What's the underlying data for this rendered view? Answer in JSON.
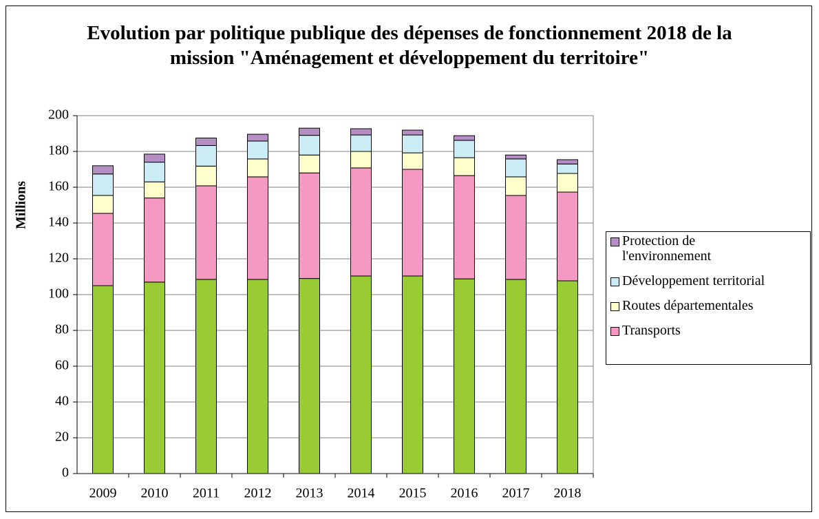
{
  "chart_data": {
    "type": "bar",
    "stacked": true,
    "title": "Evolution par politique publique des dépenses de fonctionnement 2018 de la mission \"Aménagement et développement du territoire\"",
    "y_label": "Millions",
    "categories": [
      "2009",
      "2010",
      "2011",
      "2012",
      "2013",
      "2014",
      "2015",
      "2016",
      "2017",
      "2018"
    ],
    "series": [
      {
        "color": "#99cc33",
        "values": [
          105,
          107,
          108.5,
          108.5,
          109,
          110.4,
          110.4,
          108.8,
          108.5,
          107.7
        ]
      },
      {
        "name": "Transports",
        "color": "#f49ac2",
        "values": [
          40.4,
          47,
          52.3,
          57.3,
          59,
          60.4,
          59.6,
          57.7,
          46.9,
          49.6
        ]
      },
      {
        "name": "Routes départementales",
        "color": "#ffffcc",
        "values": [
          10,
          9,
          11,
          10,
          10,
          9.2,
          9.2,
          10,
          10.4,
          10.4
        ]
      },
      {
        "name": "Développement territorial",
        "color": "#ccecf5",
        "values": [
          12,
          11,
          11.5,
          10,
          11,
          9.2,
          10,
          9.7,
          10,
          5.3
        ]
      },
      {
        "name": "Protection de l'environnement",
        "color": "#b58fc4",
        "values": [
          4.6,
          4.5,
          4.2,
          3.8,
          4,
          3.5,
          2.7,
          2.6,
          2.2,
          2.4
        ]
      }
    ],
    "ylim": [
      0,
      200
    ],
    "yticks": [
      0,
      20,
      40,
      60,
      80,
      100,
      120,
      140,
      160,
      180,
      200
    ],
    "grid": true,
    "legend": "right"
  }
}
